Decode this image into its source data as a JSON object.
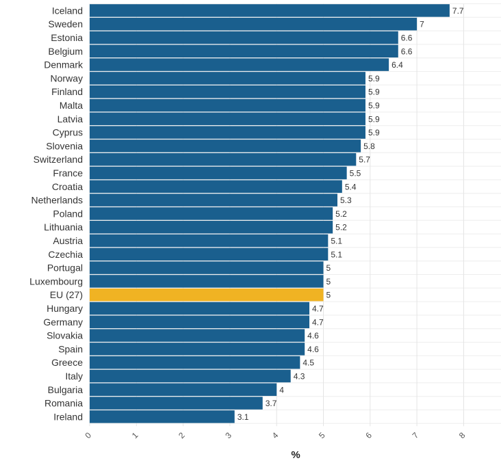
{
  "chart_data": {
    "type": "bar",
    "orientation": "horizontal",
    "categories": [
      "Iceland",
      "Sweden",
      "Estonia",
      "Belgium",
      "Denmark",
      "Norway",
      "Finland",
      "Malta",
      "Latvia",
      "Cyprus",
      "Slovenia",
      "Switzerland",
      "France",
      "Croatia",
      "Netherlands",
      "Poland",
      "Lithuania",
      "Austria",
      "Czechia",
      "Portugal",
      "Luxembourg",
      "EU (27)",
      "Hungary",
      "Germany",
      "Slovakia",
      "Spain",
      "Greece",
      "Italy",
      "Bulgaria",
      "Romania",
      "Ireland"
    ],
    "values": [
      7.7,
      7,
      6.6,
      6.6,
      6.4,
      5.9,
      5.9,
      5.9,
      5.9,
      5.9,
      5.8,
      5.7,
      5.5,
      5.4,
      5.3,
      5.2,
      5.2,
      5.1,
      5.1,
      5,
      5,
      5,
      4.7,
      4.7,
      4.6,
      4.6,
      4.5,
      4.3,
      4,
      3.7,
      3.1
    ],
    "value_labels": [
      "7.7",
      "7",
      "6.6",
      "6.6",
      "6.4",
      "5.9",
      "5.9",
      "5.9",
      "5.9",
      "5.9",
      "5.8",
      "5.7",
      "5.5",
      "5.4",
      "5.3",
      "5.2",
      "5.2",
      "5.1",
      "5.1",
      "5",
      "5",
      "5",
      "4.7",
      "4.7",
      "4.6",
      "4.6",
      "4.5",
      "4.3",
      "4",
      "3.7",
      "3.1"
    ],
    "highlight_category": "EU (27)",
    "colors": {
      "bar": "#1a5f8e",
      "highlight": "#f0b323"
    },
    "xlabel": "%",
    "xlim": [
      0,
      8.8
    ],
    "xticks": [
      0,
      1,
      2,
      3,
      4,
      5,
      6,
      7,
      8
    ],
    "xtick_labels": [
      "0",
      "1",
      "2",
      "3",
      "4",
      "5",
      "6",
      "7",
      "8"
    ],
    "grid": true,
    "legend": "none"
  }
}
